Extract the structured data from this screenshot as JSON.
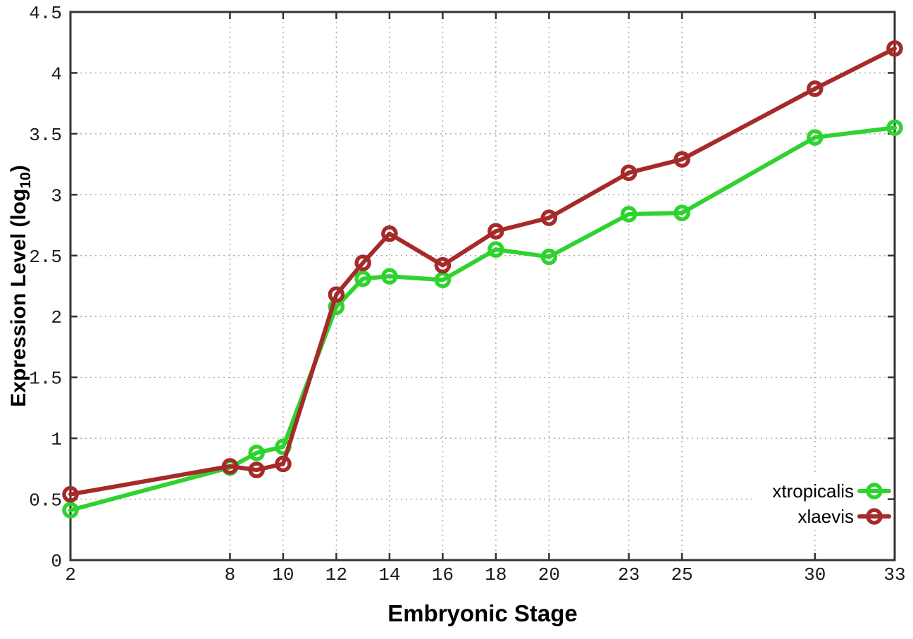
{
  "chart_data": {
    "type": "line",
    "title": "",
    "xlabel": "Embryonic Stage",
    "ylabel": "Expression Level (log10)",
    "ylabel_parts": {
      "prefix": "Expression Level (log",
      "sub": "10",
      "suffix": ")"
    },
    "x": [
      2,
      8,
      9,
      10,
      12,
      13,
      14,
      16,
      18,
      20,
      23,
      25,
      30,
      33
    ],
    "series": [
      {
        "name": "xtropicalis",
        "color": "#2FD32F",
        "values": [
          0.41,
          0.76,
          0.88,
          0.93,
          2.08,
          2.31,
          2.33,
          2.3,
          2.55,
          2.49,
          2.84,
          2.85,
          3.47,
          3.55
        ]
      },
      {
        "name": "xlaevis",
        "color": "#A52A2A",
        "values": [
          0.54,
          0.77,
          0.74,
          0.79,
          2.18,
          2.44,
          2.68,
          2.42,
          2.7,
          2.81,
          3.18,
          3.29,
          3.87,
          4.2
        ]
      }
    ],
    "xlim": [
      2,
      33
    ],
    "ylim": [
      0,
      4.5
    ],
    "xticks": [
      2,
      8,
      10,
      12,
      14,
      16,
      18,
      20,
      23,
      25,
      30,
      33
    ],
    "yticks": [
      0,
      0.5,
      1,
      1.5,
      2,
      2.5,
      3,
      3.5,
      4,
      4.5
    ],
    "grid": true,
    "legend_position": "bottom-right",
    "marker": "open-circle",
    "colors": {
      "grid": "#aaaaaa",
      "axis": "#333333",
      "text": "#000000",
      "background": "#ffffff"
    }
  }
}
